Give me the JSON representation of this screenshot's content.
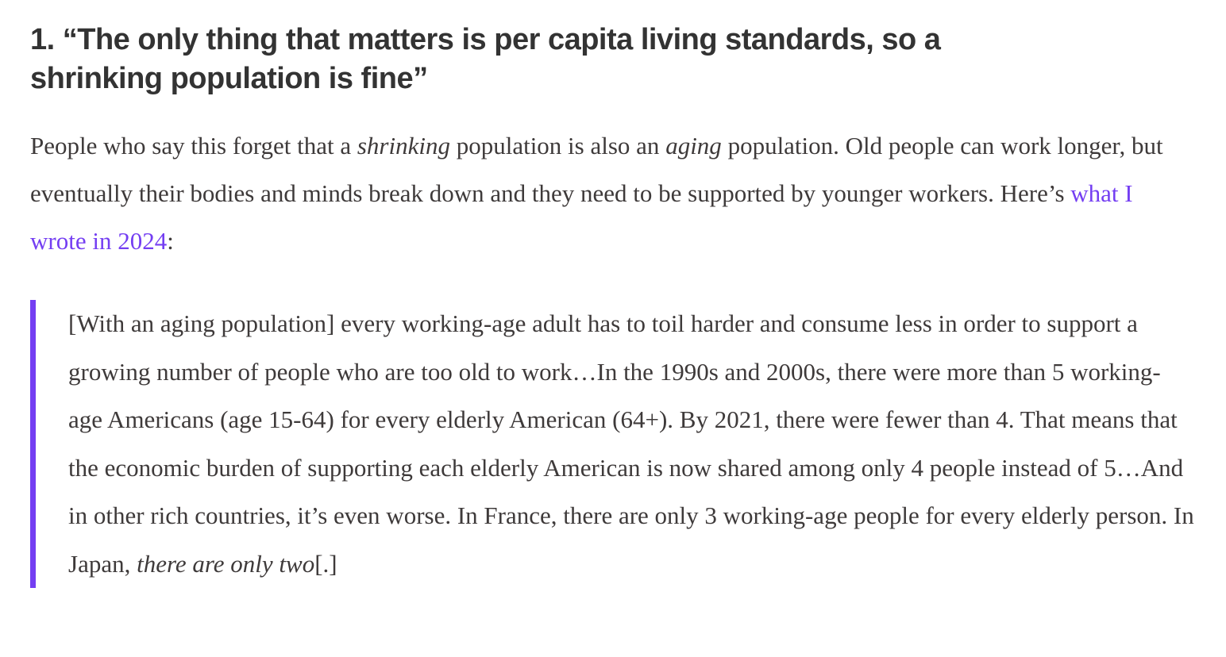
{
  "accent_color": "#743ef2",
  "article": {
    "heading": "1. “The only thing that matters is per capita living standards, so a shrinking population is fine”",
    "intro": {
      "segments": [
        {
          "text": "People who say this forget that a ",
          "style": "normal"
        },
        {
          "text": "shrinking",
          "style": "italic"
        },
        {
          "text": " population is also an ",
          "style": "normal"
        },
        {
          "text": "aging",
          "style": "italic"
        },
        {
          "text": " population. Old people can work longer, but eventually their bodies and minds break down and they need to be supported by younger workers. Here’s ",
          "style": "normal"
        },
        {
          "text": "what I wrote in 2024",
          "style": "link"
        },
        {
          "text": ":",
          "style": "normal"
        }
      ]
    },
    "blockquote": {
      "segments": [
        {
          "text": "[With an aging population] every working-age adult has to toil harder and consume less in order to support a growing number of people who are too old to work…In the 1990s and 2000s, there were more than 5 working-age Americans (age 15-64) for every elderly American (64+). By 2021, there were fewer than 4. That means that the economic burden of supporting each elderly American is now shared among only 4 people instead of 5…And in other rich countries, it’s even worse. In France, there are only 3 working-age people for every elderly person. In Japan, ",
          "style": "normal"
        },
        {
          "text": "there are only two",
          "style": "italic"
        },
        {
          "text": "[.]",
          "style": "normal"
        }
      ]
    }
  }
}
